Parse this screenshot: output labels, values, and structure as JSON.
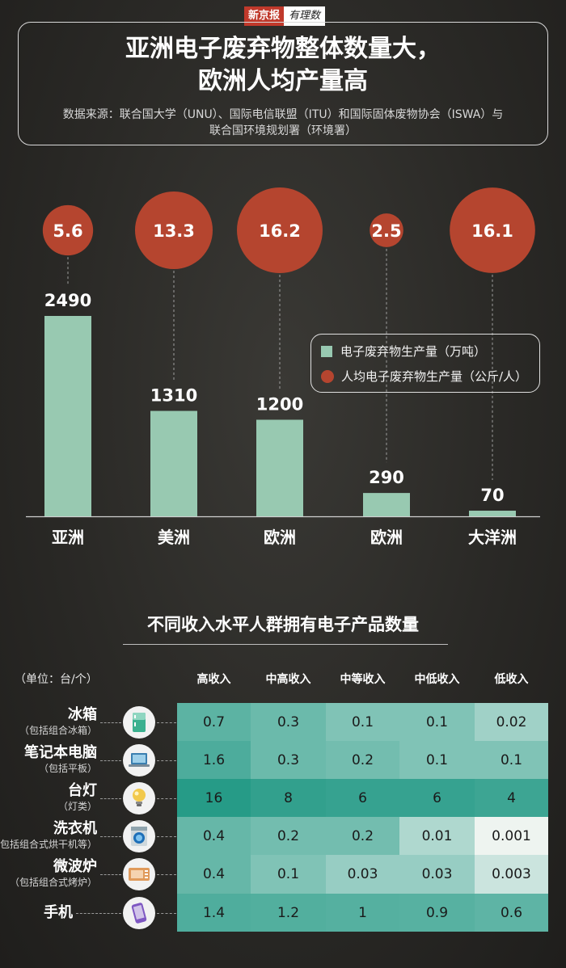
{
  "logo": {
    "part1": "新京报",
    "part2": "有理数"
  },
  "header": {
    "title_line1": "亚洲电子废弃物整体数量大，",
    "title_line2": "欧洲人均产量高",
    "source_line1": "数据来源：联合国大学（UNU）、国际电信联盟（ITU）和国际固体废物协会（ISWA）与",
    "source_line2": "联合国环境规划署（环境署）"
  },
  "legend": {
    "bar_label": "电子废弃物生产量（万吨）",
    "circle_label": "人均电子废弃物生产量（公斤/人）"
  },
  "colors": {
    "bar": "#98c9b1",
    "circle": "#b5452f"
  },
  "chart_data": [
    {
      "type": "bar",
      "categories": [
        "亚洲",
        "美洲",
        "欧洲",
        "欧洲",
        "大洋洲"
      ],
      "series": [
        {
          "name": "电子废弃物生产量（万吨）",
          "values": [
            2490,
            1310,
            1200,
            290,
            70
          ]
        },
        {
          "name": "人均电子废弃物生产量（公斤/人）",
          "values": [
            5.6,
            13.3,
            16.2,
            2.5,
            16.1
          ]
        }
      ],
      "value_labels": [
        "2490",
        "1310",
        "1200",
        "290",
        "70"
      ],
      "circle_labels": [
        "5.6",
        "13.3",
        "16.2",
        "2.5",
        "16.1"
      ],
      "ylim": [
        0,
        2490
      ],
      "legend_position": "right"
    },
    {
      "type": "table",
      "title": "不同收入水平人群拥有电子产品数量",
      "unit": "（单位：台/个）",
      "columns": [
        "高收入",
        "中高收入",
        "中等收入",
        "中低收入",
        "低收入"
      ],
      "rows": [
        {
          "label": "冰箱",
          "sub": "（包括组合冰箱）",
          "icon": "fridge-icon",
          "values": [
            0.7,
            0.3,
            0.1,
            0.1,
            0.02
          ],
          "labels": [
            "0.7",
            "0.3",
            "0.1",
            "0.1",
            "0.02"
          ]
        },
        {
          "label": "笔记本电脑",
          "sub": "（包括平板）",
          "icon": "laptop-icon",
          "values": [
            1.6,
            0.3,
            0.2,
            0.1,
            0.1
          ],
          "labels": [
            "1.6",
            "0.3",
            "0.2",
            "0.1",
            "0.1"
          ]
        },
        {
          "label": "台灯",
          "sub": "（灯类）",
          "icon": "lamp-icon",
          "values": [
            16,
            8,
            6,
            6,
            4
          ],
          "labels": [
            "16",
            "8",
            "6",
            "6",
            "4"
          ]
        },
        {
          "label": "洗衣机",
          "sub": "（包括组合式烘干机等）",
          "icon": "washing-machine-icon",
          "values": [
            0.4,
            0.2,
            0.2,
            0.01,
            0.001
          ],
          "labels": [
            "0.4",
            "0.2",
            "0.2",
            "0.01",
            "0.001"
          ]
        },
        {
          "label": "微波炉",
          "sub": "（包括组合式烤炉）",
          "icon": "microwave-icon",
          "values": [
            0.4,
            0.1,
            0.03,
            0.03,
            0.003
          ],
          "labels": [
            "0.4",
            "0.1",
            "0.03",
            "0.03",
            "0.003"
          ]
        },
        {
          "label": "手机",
          "sub": "",
          "icon": "phone-icon",
          "values": [
            1.4,
            1.2,
            1,
            0.9,
            0.6
          ],
          "labels": [
            "1.4",
            "1.2",
            "1",
            "0.9",
            "0.6"
          ]
        }
      ]
    }
  ]
}
